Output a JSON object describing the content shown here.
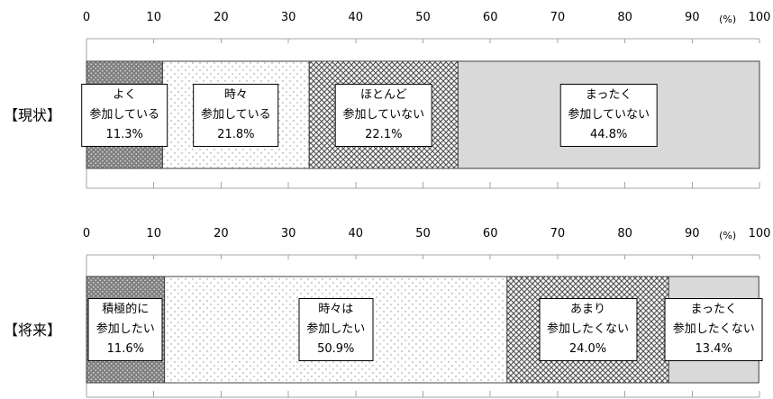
{
  "chart_data": [
    {
      "type": "bar",
      "orientation": "horizontal",
      "stacked": true,
      "categories": [
        "【現状】"
      ],
      "xlim": [
        0,
        100
      ],
      "xticks": [
        0,
        10,
        20,
        30,
        40,
        50,
        60,
        70,
        80,
        90,
        100
      ],
      "xunit": "(%)",
      "x_axis_position": "top",
      "grid": false,
      "series": [
        {
          "label_lines": [
            "よく",
            "参加している"
          ],
          "values": [
            11.3
          ],
          "data_labels": [
            "11.3%"
          ],
          "pattern": "dense-dots",
          "fill": "#7f7f7f",
          "pattern_color": "#d6d6d6"
        },
        {
          "label_lines": [
            "時々",
            "参加している"
          ],
          "values": [
            21.8
          ],
          "data_labels": [
            "21.8%"
          ],
          "pattern": "sparse-dots",
          "fill": "#ffffff",
          "pattern_color": "#8c8c8c"
        },
        {
          "label_lines": [
            "ほとんど",
            "参加していない"
          ],
          "values": [
            22.1
          ],
          "data_labels": [
            "22.1%"
          ],
          "pattern": "crosshatch",
          "fill": "#ffffff",
          "pattern_color": "#5a5a5a"
        },
        {
          "label_lines": [
            "まったく",
            "参加していない"
          ],
          "values": [
            44.8
          ],
          "data_labels": [
            "44.8%"
          ],
          "pattern": "solid",
          "fill": "#d9d9d9",
          "pattern_color": "#d9d9d9"
        }
      ]
    },
    {
      "type": "bar",
      "orientation": "horizontal",
      "stacked": true,
      "categories": [
        "【将来】"
      ],
      "xlim": [
        0,
        100
      ],
      "xticks": [
        0,
        10,
        20,
        30,
        40,
        50,
        60,
        70,
        80,
        90,
        100
      ],
      "xunit": "(%)",
      "x_axis_position": "top",
      "grid": false,
      "series": [
        {
          "label_lines": [
            "積極的に",
            "参加したい"
          ],
          "values": [
            11.6
          ],
          "data_labels": [
            "11.6%"
          ],
          "pattern": "dense-dots",
          "fill": "#7f7f7f",
          "pattern_color": "#d6d6d6"
        },
        {
          "label_lines": [
            "時々は",
            "参加したい"
          ],
          "values": [
            50.9
          ],
          "data_labels": [
            "50.9%"
          ],
          "pattern": "sparse-dots",
          "fill": "#ffffff",
          "pattern_color": "#8c8c8c"
        },
        {
          "label_lines": [
            "あまり",
            "参加したくない"
          ],
          "values": [
            24.0
          ],
          "data_labels": [
            "24.0%"
          ],
          "pattern": "crosshatch",
          "fill": "#ffffff",
          "pattern_color": "#5a5a5a"
        },
        {
          "label_lines": [
            "まったく",
            "参加したくない"
          ],
          "values": [
            13.4
          ],
          "data_labels": [
            "13.4%"
          ],
          "pattern": "solid",
          "fill": "#d9d9d9",
          "pattern_color": "#d9d9d9"
        }
      ]
    }
  ],
  "style": {
    "axis_color": "#a6a6a6",
    "segment_border_color": "#404040",
    "label_box_background": "#ffffff",
    "label_box_border": "#000000"
  }
}
